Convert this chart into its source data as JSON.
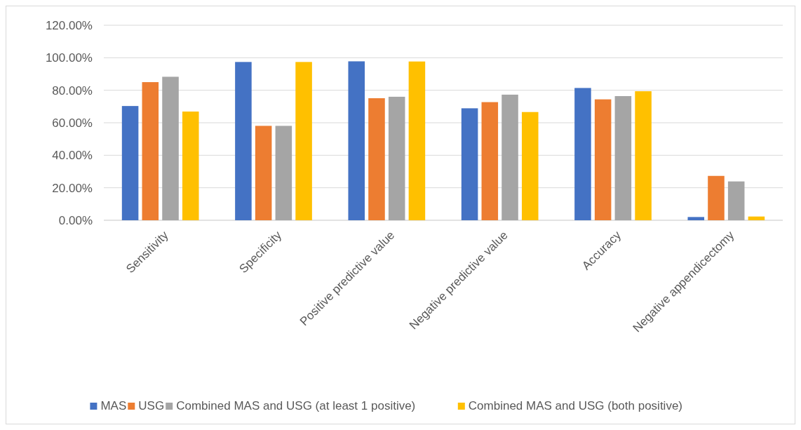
{
  "chart_data": {
    "type": "bar",
    "categories": [
      "Sensitivity",
      "Specificity",
      "Positive predictive value",
      "Negative predictive value",
      "Accuracy",
      "Negative appendicectomy"
    ],
    "series": [
      {
        "name": "MAS",
        "color": "#4472c4",
        "values": [
          70.3,
          97.4,
          97.8,
          68.9,
          81.4,
          2.0
        ]
      },
      {
        "name": "USG",
        "color": "#ed7d31",
        "values": [
          85.0,
          58.1,
          75.1,
          72.7,
          74.4,
          27.3
        ]
      },
      {
        "name": "Combined MAS and USG (at least 1 positive)",
        "color": "#a5a5a5",
        "values": [
          88.3,
          58.1,
          76.0,
          77.3,
          76.4,
          23.9
        ]
      },
      {
        "name": "Combined MAS and USG (both positive)",
        "color": "#ffc000",
        "values": [
          66.9,
          97.4,
          97.7,
          66.6,
          79.4,
          2.3
        ]
      }
    ],
    "ylim": [
      0,
      120
    ],
    "yticks": [
      {
        "value": 0,
        "label": "0.00%"
      },
      {
        "value": 20,
        "label": "20.00%"
      },
      {
        "value": 40,
        "label": "40.00%"
      },
      {
        "value": 60,
        "label": "60.00%"
      },
      {
        "value": 80,
        "label": "80.00%"
      },
      {
        "value": 100,
        "label": "100.00%"
      },
      {
        "value": 120,
        "label": "120.00%"
      }
    ],
    "grid": "y",
    "legend": "bottom"
  }
}
